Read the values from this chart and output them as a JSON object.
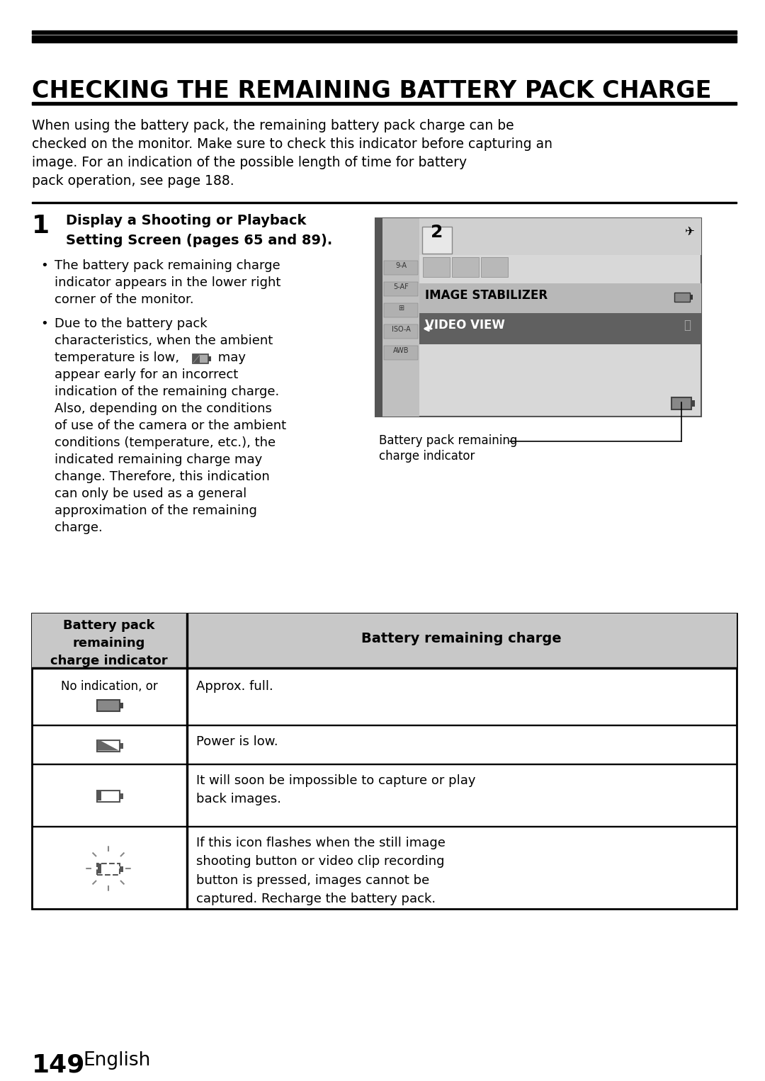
{
  "title": "CHECKING THE REMAINING BATTERY PACK CHARGE",
  "page_num": "149",
  "page_label": "English",
  "bg_color": "#ffffff",
  "intro_lines": [
    "When using the battery pack, the remaining battery pack charge can be",
    "checked on the monitor. Make sure to check this indicator before capturing an",
    "image. For an indication of the possible length of time for battery",
    "pack operation, see page 188."
  ],
  "step_number": "1",
  "step_title_line1": "Display a Shooting or Playback",
  "step_title_line2": "Setting Screen (pages 65 and 89).",
  "bullet1_lines": [
    "The battery pack remaining charge",
    "indicator appears in the lower right",
    "corner of the monitor."
  ],
  "bullet2_lines": [
    "Due to the battery pack",
    "characteristics, when the ambient",
    "temperature is low,",
    "may",
    "appear early for an incorrect",
    "indication of the remaining charge.",
    "Also, depending on the conditions",
    "of use of the camera or the ambient",
    "conditions (temperature, etc.), the",
    "indicated remaining charge may",
    "change. Therefore, this indication",
    "can only be used as a general",
    "approximation of the remaining",
    "charge."
  ],
  "cam_label_line1": "Battery pack remaining",
  "cam_label_line2": "charge indicator",
  "table_header1": "Battery pack\nremaining\ncharge indicator",
  "table_header2": "Battery remaining charge",
  "row1_indicator": "No indication, or",
  "row1_desc": "Approx. full.",
  "row2_desc": "Power is low.",
  "row3_desc": "It will soon be impossible to capture or play\nback images.",
  "row4_desc": "If this icon flashes when the still image\nshooting button or video clip recording\nbutton is pressed, images cannot be\ncaptured. Recharge the battery pack."
}
